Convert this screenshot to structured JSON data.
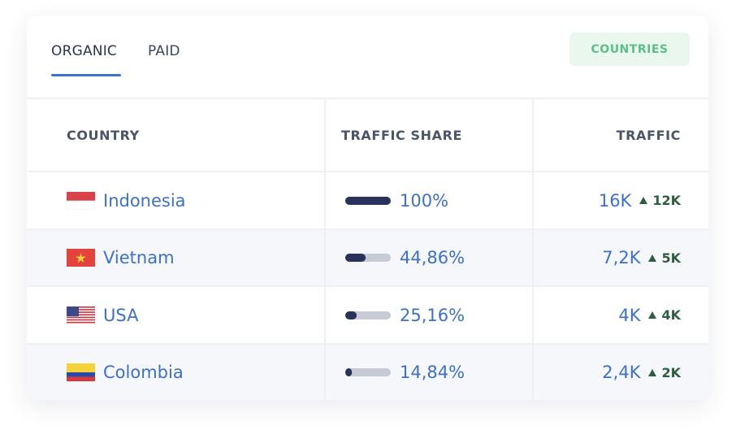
{
  "tabs": [
    "ORGANIC",
    "PAID"
  ],
  "button": "COUNTRIES",
  "table": {
    "columns": [
      "COUNTRY",
      "TRAFFIC SHARE",
      "TRAFFIC"
    ],
    "rows": [
      {
        "country": "Indonesia",
        "share": 100,
        "share_label": "100%",
        "traffic": "16K",
        "growth": "12K"
      },
      {
        "country": "Vietnam",
        "share": 44.86,
        "share_label": "44,86%",
        "traffic": "7,2K",
        "growth": "5K"
      },
      {
        "country": "USA",
        "share": 25.16,
        "share_label": "25,16%",
        "traffic": "4K",
        "growth": "4K"
      },
      {
        "country": "Colombia",
        "share": 14.84,
        "share_label": "14,84%",
        "traffic": "2,4K",
        "growth": "2K"
      }
    ]
  }
}
